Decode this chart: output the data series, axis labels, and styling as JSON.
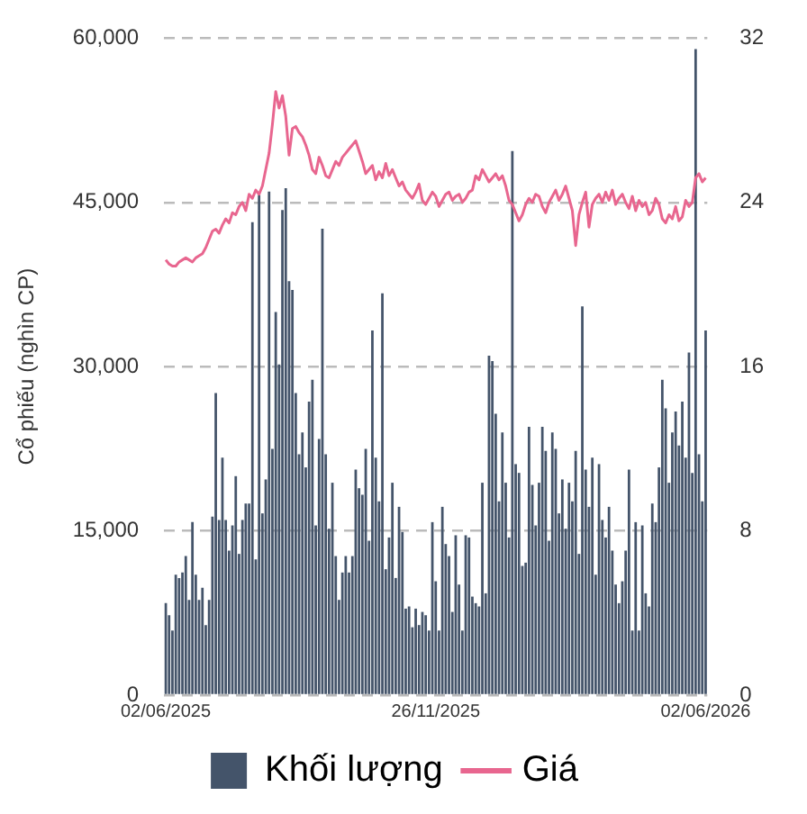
{
  "chart_data": {
    "type": "bar",
    "ylabel": "Cổ phiếu (nghìn CP)",
    "categories": [
      "02/06/2025",
      null,
      null,
      null,
      null,
      null,
      null,
      null,
      null,
      null,
      null,
      null,
      null,
      null,
      null,
      null,
      null,
      null,
      null,
      null,
      null,
      null,
      null,
      null,
      null,
      null,
      null,
      null,
      null,
      null,
      null,
      null,
      null,
      null,
      null,
      null,
      null,
      null,
      null,
      null,
      null,
      null,
      null,
      null,
      null,
      null,
      null,
      null,
      null,
      null,
      null,
      null,
      null,
      null,
      null,
      null,
      null,
      null,
      null,
      null,
      null,
      null,
      null,
      null,
      null,
      null,
      null,
      null,
      null,
      null,
      null,
      null,
      null,
      null,
      null,
      null,
      null,
      null,
      null,
      null,
      null,
      "26/11/2025",
      null,
      null,
      null,
      null,
      null,
      null,
      null,
      null,
      null,
      null,
      null,
      null,
      null,
      null,
      null,
      null,
      null,
      null,
      null,
      null,
      null,
      null,
      null,
      null,
      null,
      null,
      null,
      null,
      null,
      null,
      null,
      null,
      null,
      null,
      null,
      null,
      null,
      null,
      null,
      null,
      null,
      null,
      null,
      null,
      null,
      null,
      null,
      null,
      null,
      null,
      null,
      null,
      null,
      null,
      null,
      null,
      null,
      null,
      null,
      null,
      null,
      null,
      null,
      null,
      null,
      null,
      null,
      null,
      null,
      null,
      null,
      null,
      null,
      null,
      null,
      null,
      null,
      null,
      null,
      null,
      "02/06/2026"
    ],
    "series": [
      {
        "name": "Khối lượng",
        "color": "#44546a",
        "values": [
          8400,
          7300,
          5900,
          11000,
          10700,
          11200,
          12700,
          8700,
          15800,
          11000,
          8700,
          9800,
          6400,
          8700,
          16300,
          27600,
          16000,
          21700,
          16000,
          13200,
          15500,
          20000,
          12900,
          16000,
          17500,
          17500,
          43200,
          12400,
          45700,
          16600,
          19700,
          46000,
          22500,
          35000,
          30200,
          44300,
          46300,
          37800,
          37000,
          27600,
          22000,
          24000,
          20800,
          26800,
          28800,
          15500,
          23400,
          42600,
          22000,
          15200,
          19400,
          12700,
          8700,
          11200,
          12700,
          11200,
          12700,
          20600,
          18900,
          18300,
          22500,
          14100,
          33300,
          21700,
          17700,
          36700,
          11500,
          14400,
          19400,
          10700,
          17200,
          14900,
          7900,
          8100,
          6200,
          7900,
          6400,
          7600,
          7300,
          5900,
          15800,
          10400,
          5900,
          17200,
          13800,
          12700,
          7600,
          14600,
          10100,
          5900,
          14600,
          14400,
          9000,
          8400,
          8100,
          19400,
          9300,
          31000,
          30500,
          25700,
          17700,
          24000,
          19400,
          14400,
          49700,
          21100,
          20300,
          11800,
          12100,
          24500,
          19200,
          15500,
          19400,
          24500,
          22300,
          14100,
          24000,
          22500,
          16600,
          19700,
          15200,
          19400,
          17700,
          22300,
          12900,
          35500,
          20600,
          17200,
          21700,
          11000,
          21100,
          16000,
          14400,
          17200,
          13200,
          10100,
          8400,
          10400,
          13200,
          20600,
          5900,
          15800,
          5900,
          15500,
          9300,
          8100,
          17500,
          15800,
          20800,
          28800,
          26200,
          19400,
          24000,
          25900,
          22800,
          26800,
          21700,
          31300,
          20300,
          59000,
          22000,
          17700,
          33300
        ]
      },
      {
        "name": "Giá",
        "type": "line",
        "axis": "y2",
        "color": "#e8668f",
        "values": [
          21.2,
          21.0,
          20.9,
          20.9,
          21.1,
          21.2,
          21.3,
          21.2,
          21.1,
          21.3,
          21.4,
          21.5,
          21.8,
          22.2,
          22.6,
          22.7,
          22.5,
          22.9,
          23.2,
          23.0,
          23.5,
          23.4,
          23.8,
          24.0,
          23.6,
          24.4,
          24.2,
          24.6,
          24.4,
          24.8,
          25.6,
          26.4,
          27.8,
          29.4,
          28.6,
          29.2,
          28.2,
          26.3,
          27.6,
          27.7,
          27.4,
          27.2,
          26.8,
          26.3,
          25.6,
          25.4,
          26.2,
          25.8,
          25.3,
          25.2,
          25.6,
          26.0,
          25.8,
          26.2,
          26.4,
          26.6,
          26.8,
          27.0,
          26.5,
          26.0,
          25.4,
          25.6,
          25.8,
          25.1,
          25.5,
          25.2,
          25.9,
          25.3,
          25.6,
          25.2,
          24.8,
          25.0,
          24.6,
          24.4,
          24.2,
          24.5,
          24.9,
          24.1,
          23.9,
          24.2,
          24.5,
          24.3,
          23.8,
          24.1,
          24.4,
          24.5,
          24.1,
          24.3,
          24.4,
          24.0,
          24.2,
          24.5,
          24.6,
          25.3,
          25.1,
          25.6,
          25.3,
          25.0,
          25.2,
          25.4,
          25.1,
          25.3,
          24.8,
          24.1,
          23.9,
          23.5,
          23.1,
          23.4,
          23.9,
          24.2,
          24.0,
          24.4,
          24.3,
          23.8,
          23.5,
          24.0,
          24.3,
          24.6,
          24.1,
          24.4,
          24.8,
          24.2,
          23.6,
          21.9,
          23.4,
          24.0,
          24.5,
          22.8,
          23.9,
          24.2,
          24.4,
          24.0,
          24.5,
          24.1,
          24.6,
          23.9,
          24.2,
          24.4,
          24.0,
          23.7,
          24.3,
          23.6,
          24.1,
          23.8,
          24.0,
          23.4,
          23.6,
          24.2,
          23.9,
          23.2,
          23.0,
          23.4,
          23.2,
          23.8,
          23.1,
          23.3,
          24.1,
          23.8,
          24.0,
          25.2,
          25.4,
          25.0,
          25.2
        ]
      }
    ],
    "ylim": [
      0,
      60000
    ],
    "yticks": [
      0,
      {
        "value": 15000,
        "label": "15,000"
      },
      {
        "value": 30000,
        "label": "30,000"
      },
      {
        "value": 45000,
        "label": "45,000"
      },
      {
        "value": 60000,
        "label": "60,000"
      }
    ],
    "y2lim": [
      0,
      32
    ],
    "y2ticks": [
      0,
      8,
      16,
      24,
      32
    ],
    "grid": "y",
    "legend": "bottom"
  }
}
